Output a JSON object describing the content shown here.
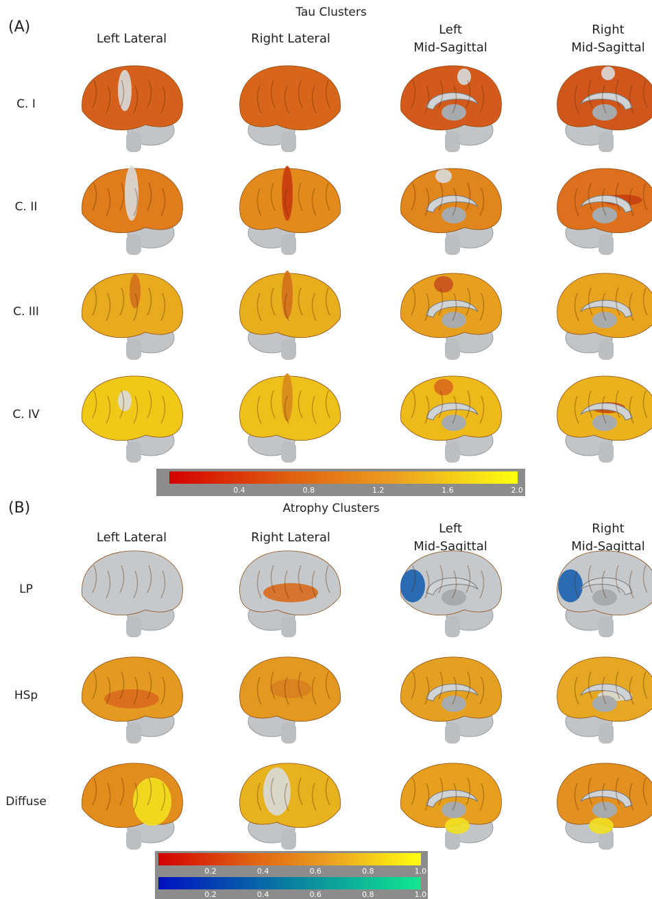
{
  "panel_a": {
    "label": "(A)",
    "title": "Tau Clusters",
    "columns": [
      [
        "Left Lateral"
      ],
      [
        "Right Lateral"
      ],
      [
        "Left",
        "Mid-Sagittal"
      ],
      [
        "Right",
        "Mid-Sagittal"
      ]
    ],
    "rows": [
      "C. I",
      "C. II",
      "C. III",
      "C. IV"
    ],
    "colorbar_ticks": [
      "0.4",
      "0.8",
      "1.2",
      "1.6",
      "2.0"
    ]
  },
  "panel_b": {
    "label": "(B)",
    "title": "Atrophy Clusters",
    "columns": [
      [
        "Left Lateral"
      ],
      [
        "Right Lateral"
      ],
      [
        "Left",
        "Mid-Sagittal"
      ],
      [
        "Right",
        "Mid-Sagittal"
      ]
    ],
    "rows": [
      "LP",
      "HSp",
      "Diffuse"
    ],
    "colorbar_ticks": [
      "0.2",
      "0.4",
      "0.6",
      "0.8",
      "1.0"
    ],
    "colorbar2_ticks": [
      "0.2",
      "0.4",
      "0.6",
      "0.8",
      "1.0"
    ]
  }
}
